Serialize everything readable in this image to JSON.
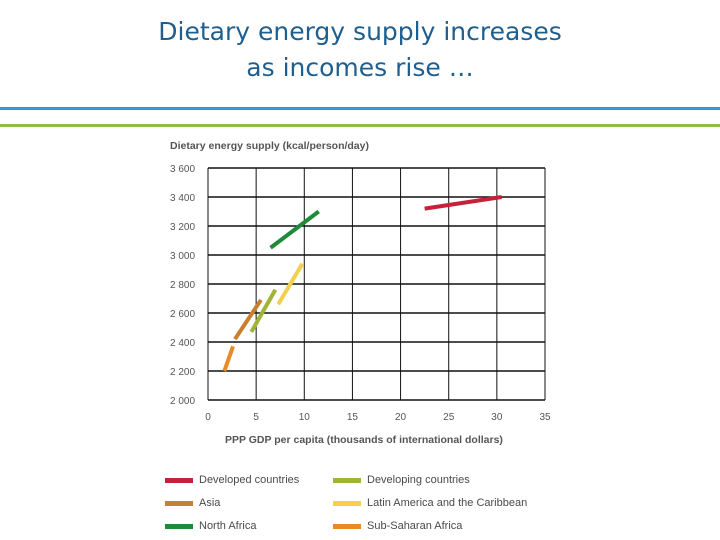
{
  "slide": {
    "title_line1": "Dietary energy supply increases",
    "title_line2": "as incomes rise …"
  },
  "colors": {
    "title": "#1f5f8f",
    "rule_blue": "#3a97d4",
    "rule_green": "#8dbb4c",
    "gridline": "#111111",
    "axis_text": "#555555"
  },
  "chart_data": {
    "type": "line",
    "title": "",
    "ylabel": "Dietary energy supply (kcal/person/day)",
    "xlabel": "PPP GDP per capita (thousands of international dollars)",
    "xlim": [
      0,
      35
    ],
    "ylim": [
      2000,
      3600
    ],
    "x_ticks": [
      0,
      5,
      10,
      15,
      20,
      25,
      30,
      35
    ],
    "x_tick_labels": [
      "0",
      "5",
      "10",
      "15",
      "20",
      "25",
      "30",
      "35"
    ],
    "y_ticks": [
      2000,
      2200,
      2400,
      2600,
      2800,
      3000,
      3200,
      3400,
      3600
    ],
    "y_tick_labels": [
      "2 000",
      "2 200",
      "2 400",
      "2 600",
      "2 800",
      "3 000",
      "3 200",
      "3 400",
      "3 600"
    ],
    "series": [
      {
        "name": "Developed countries",
        "color": "#c8203a",
        "x": [
          22.5,
          30.5
        ],
        "y": [
          3320,
          3400
        ]
      },
      {
        "name": "Developing countries",
        "color": "#9fb535",
        "x": [
          4.5,
          7.0
        ],
        "y": [
          2470,
          2760
        ]
      },
      {
        "name": "Asia",
        "color": "#c9802e",
        "x": [
          2.8,
          5.5
        ],
        "y": [
          2420,
          2690
        ]
      },
      {
        "name": "Latin America and the Caribbean",
        "color": "#f2d050",
        "x": [
          7.3,
          9.8
        ],
        "y": [
          2660,
          2940
        ]
      },
      {
        "name": "North Africa",
        "color": "#1e8a3a",
        "x": [
          6.5,
          11.5
        ],
        "y": [
          3050,
          3300
        ]
      },
      {
        "name": "Sub-Saharan Africa",
        "color": "#ea8a25",
        "x": [
          1.7,
          2.6
        ],
        "y": [
          2200,
          2370
        ]
      }
    ]
  }
}
